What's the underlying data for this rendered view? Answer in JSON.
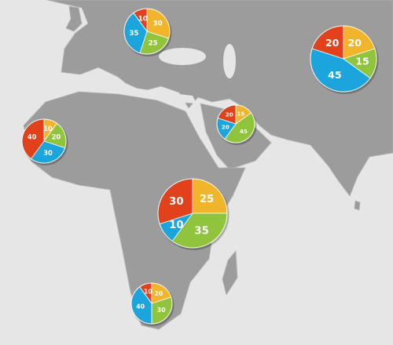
{
  "chart_data": [
    {
      "type": "pie",
      "values": [
        30,
        25,
        35,
        10
      ],
      "colors": [
        "#f0b52a",
        "#8fc43c",
        "#1ba5dc",
        "#e2421b"
      ]
    },
    {
      "type": "pie",
      "values": [
        20,
        15,
        45,
        20
      ],
      "colors": [
        "#f0b52a",
        "#8fc43c",
        "#1ba5dc",
        "#e2421b"
      ]
    },
    {
      "type": "pie",
      "values": [
        10,
        20,
        30,
        40
      ],
      "colors": [
        "#f0b52a",
        "#8fc43c",
        "#1ba5dc",
        "#e2421b"
      ]
    },
    {
      "type": "pie",
      "values": [
        15,
        45,
        20,
        20
      ],
      "colors": [
        "#f0b52a",
        "#8fc43c",
        "#1ba5dc",
        "#e2421b"
      ]
    },
    {
      "type": "pie",
      "values": [
        25,
        35,
        10,
        30
      ],
      "colors": [
        "#f0b52a",
        "#8fc43c",
        "#1ba5dc",
        "#e2421b"
      ]
    },
    {
      "type": "pie",
      "values": [
        20,
        30,
        40,
        10
      ],
      "colors": [
        "#f0b52a",
        "#8fc43c",
        "#1ba5dc",
        "#e2421b"
      ]
    }
  ]
}
